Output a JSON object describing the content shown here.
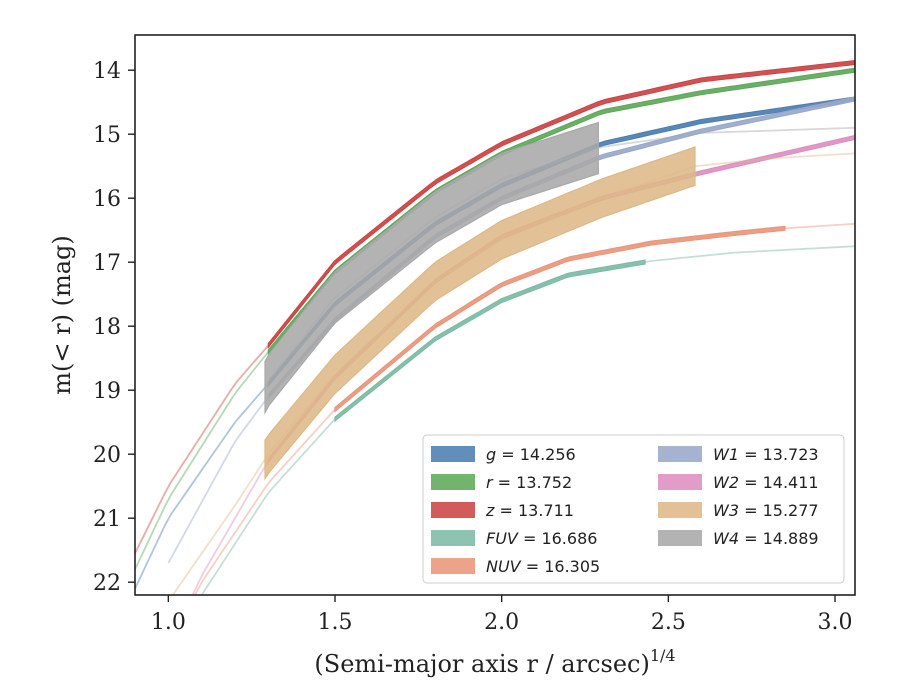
{
  "chart_data": {
    "type": "line",
    "xlabel": "(Semi-major axis r / arcsec)",
    "xlabel_superscript": "1/4",
    "ylabel": "m(< r) (mag)",
    "xlim": [
      0.9,
      3.06
    ],
    "ylim": [
      22.2,
      13.45
    ],
    "y_inverted": true,
    "grid": false,
    "legend_position": "lower-right",
    "x_ticks": [
      {
        "value": 1.0,
        "label": "1.0"
      },
      {
        "value": 1.5,
        "label": "1.5"
      },
      {
        "value": 2.0,
        "label": "2.0"
      },
      {
        "value": 2.5,
        "label": "2.5"
      },
      {
        "value": 3.0,
        "label": "3.0"
      }
    ],
    "y_ticks": [
      {
        "value": 14,
        "label": "14"
      },
      {
        "value": 15,
        "label": "15"
      },
      {
        "value": 16,
        "label": "16"
      },
      {
        "value": 17,
        "label": "17"
      },
      {
        "value": 18,
        "label": "18"
      },
      {
        "value": 19,
        "label": "19"
      },
      {
        "value": 20,
        "label": "20"
      },
      {
        "value": 21,
        "label": "21"
      },
      {
        "value": 22,
        "label": "22"
      }
    ],
    "series": [
      {
        "id": "g",
        "name": "g = 14.256",
        "band": "g",
        "value": "14.256",
        "color": "#4c7eb0",
        "x": [
          0.9,
          1.0,
          1.2,
          1.3,
          1.5,
          1.8,
          2.0,
          2.3,
          2.6,
          3.06
        ],
        "y": [
          22.1,
          21.0,
          19.5,
          18.9,
          17.65,
          16.4,
          15.8,
          15.15,
          14.8,
          14.45
        ],
        "data_xmin": 1.3,
        "data_xmax": 3.06,
        "band_half_width": 0.03
      },
      {
        "id": "r",
        "name": "r = 13.752",
        "band": "r",
        "value": "13.752",
        "color": "#5fa85a",
        "x": [
          0.9,
          1.0,
          1.2,
          1.3,
          1.5,
          1.8,
          2.0,
          2.3,
          2.6,
          3.06
        ],
        "y": [
          21.8,
          20.7,
          19.05,
          18.4,
          17.15,
          15.9,
          15.3,
          14.65,
          14.35,
          14.0
        ],
        "data_xmin": 1.3,
        "data_xmax": 3.06,
        "band_half_width": 0.03
      },
      {
        "id": "z",
        "name": "z = 13.711",
        "band": "z",
        "value": "13.711",
        "color": "#cc4444",
        "x": [
          0.9,
          1.0,
          1.2,
          1.3,
          1.5,
          1.8,
          2.0,
          2.3,
          2.6,
          3.06
        ],
        "y": [
          21.55,
          20.5,
          18.9,
          18.3,
          17.0,
          15.75,
          15.15,
          14.5,
          14.15,
          13.88
        ],
        "data_xmin": 1.3,
        "data_xmax": 3.06,
        "band_half_width": 0.03
      },
      {
        "id": "FUV",
        "name": "FUV = 16.686",
        "band": "FUV",
        "value": "16.686",
        "color": "#7dbba5",
        "x": [
          1.0,
          1.1,
          1.3,
          1.5,
          1.8,
          2.0,
          2.2,
          2.45,
          2.7,
          3.06
        ],
        "y": [
          23.2,
          22.2,
          20.6,
          19.45,
          18.2,
          17.6,
          17.2,
          16.98,
          16.85,
          16.75
        ],
        "data_xmin": 1.5,
        "data_xmax": 2.43,
        "band_half_width": 0.03
      },
      {
        "id": "NUV",
        "name": "NUV = 16.305",
        "band": "NUV",
        "value": "16.305",
        "color": "#e9967a",
        "x": [
          1.0,
          1.1,
          1.3,
          1.5,
          1.8,
          2.0,
          2.2,
          2.45,
          2.7,
          2.85,
          3.06
        ],
        "y": [
          23.0,
          22.0,
          20.45,
          19.3,
          18.0,
          17.35,
          16.95,
          16.7,
          16.55,
          16.47,
          16.4
        ],
        "data_xmin": 1.5,
        "data_xmax": 2.85,
        "band_half_width": 0.03
      },
      {
        "id": "W1",
        "name": "W1 = 13.723",
        "band": "W1",
        "value": "13.723",
        "color": "#99a8c9",
        "x": [
          1.0,
          1.2,
          1.3,
          1.5,
          1.8,
          2.0,
          2.3,
          2.6,
          3.06
        ],
        "y": [
          21.7,
          19.8,
          19.1,
          17.9,
          16.6,
          16.0,
          15.35,
          14.95,
          14.45
        ],
        "data_xmin": 1.3,
        "data_xmax": 3.06,
        "band_half_width": 0.03
      },
      {
        "id": "W2",
        "name": "W2 = 14.411",
        "band": "W2",
        "value": "14.411",
        "color": "#dd8fc0",
        "x": [
          1.0,
          1.1,
          1.3,
          1.5,
          1.8,
          2.0,
          2.3,
          2.6,
          3.06
        ],
        "y": [
          23.0,
          21.9,
          20.1,
          18.8,
          17.3,
          16.6,
          16.0,
          15.6,
          15.05
        ],
        "data_xmin": 1.3,
        "data_xmax": 3.06,
        "band_half_width": 0.03
      },
      {
        "id": "W3",
        "name": "W3 = 15.277",
        "band": "W3",
        "value": "15.277",
        "color": "#deb887",
        "x": [
          1.0,
          1.2,
          1.3,
          1.5,
          1.8,
          2.0,
          2.3,
          2.58,
          2.8,
          3.06
        ],
        "y": [
          22.3,
          20.8,
          20.0,
          18.75,
          17.3,
          16.65,
          16.0,
          15.5,
          15.38,
          15.3
        ],
        "data_xmin": 1.29,
        "data_xmax": 2.58,
        "band_half_width": 0.3
      },
      {
        "id": "W4",
        "name": "W4 = 14.889",
        "band": "W4",
        "value": "14.889",
        "color": "#a9a9a9",
        "x": [
          1.29,
          1.3,
          1.5,
          1.8,
          2.0,
          2.3,
          2.6,
          3.06
        ],
        "y": [
          18.95,
          18.85,
          17.55,
          16.3,
          15.7,
          15.2,
          14.98,
          14.9
        ],
        "data_xmin": 1.29,
        "data_xmax": 2.29,
        "band_half_width": 0.4
      }
    ]
  }
}
